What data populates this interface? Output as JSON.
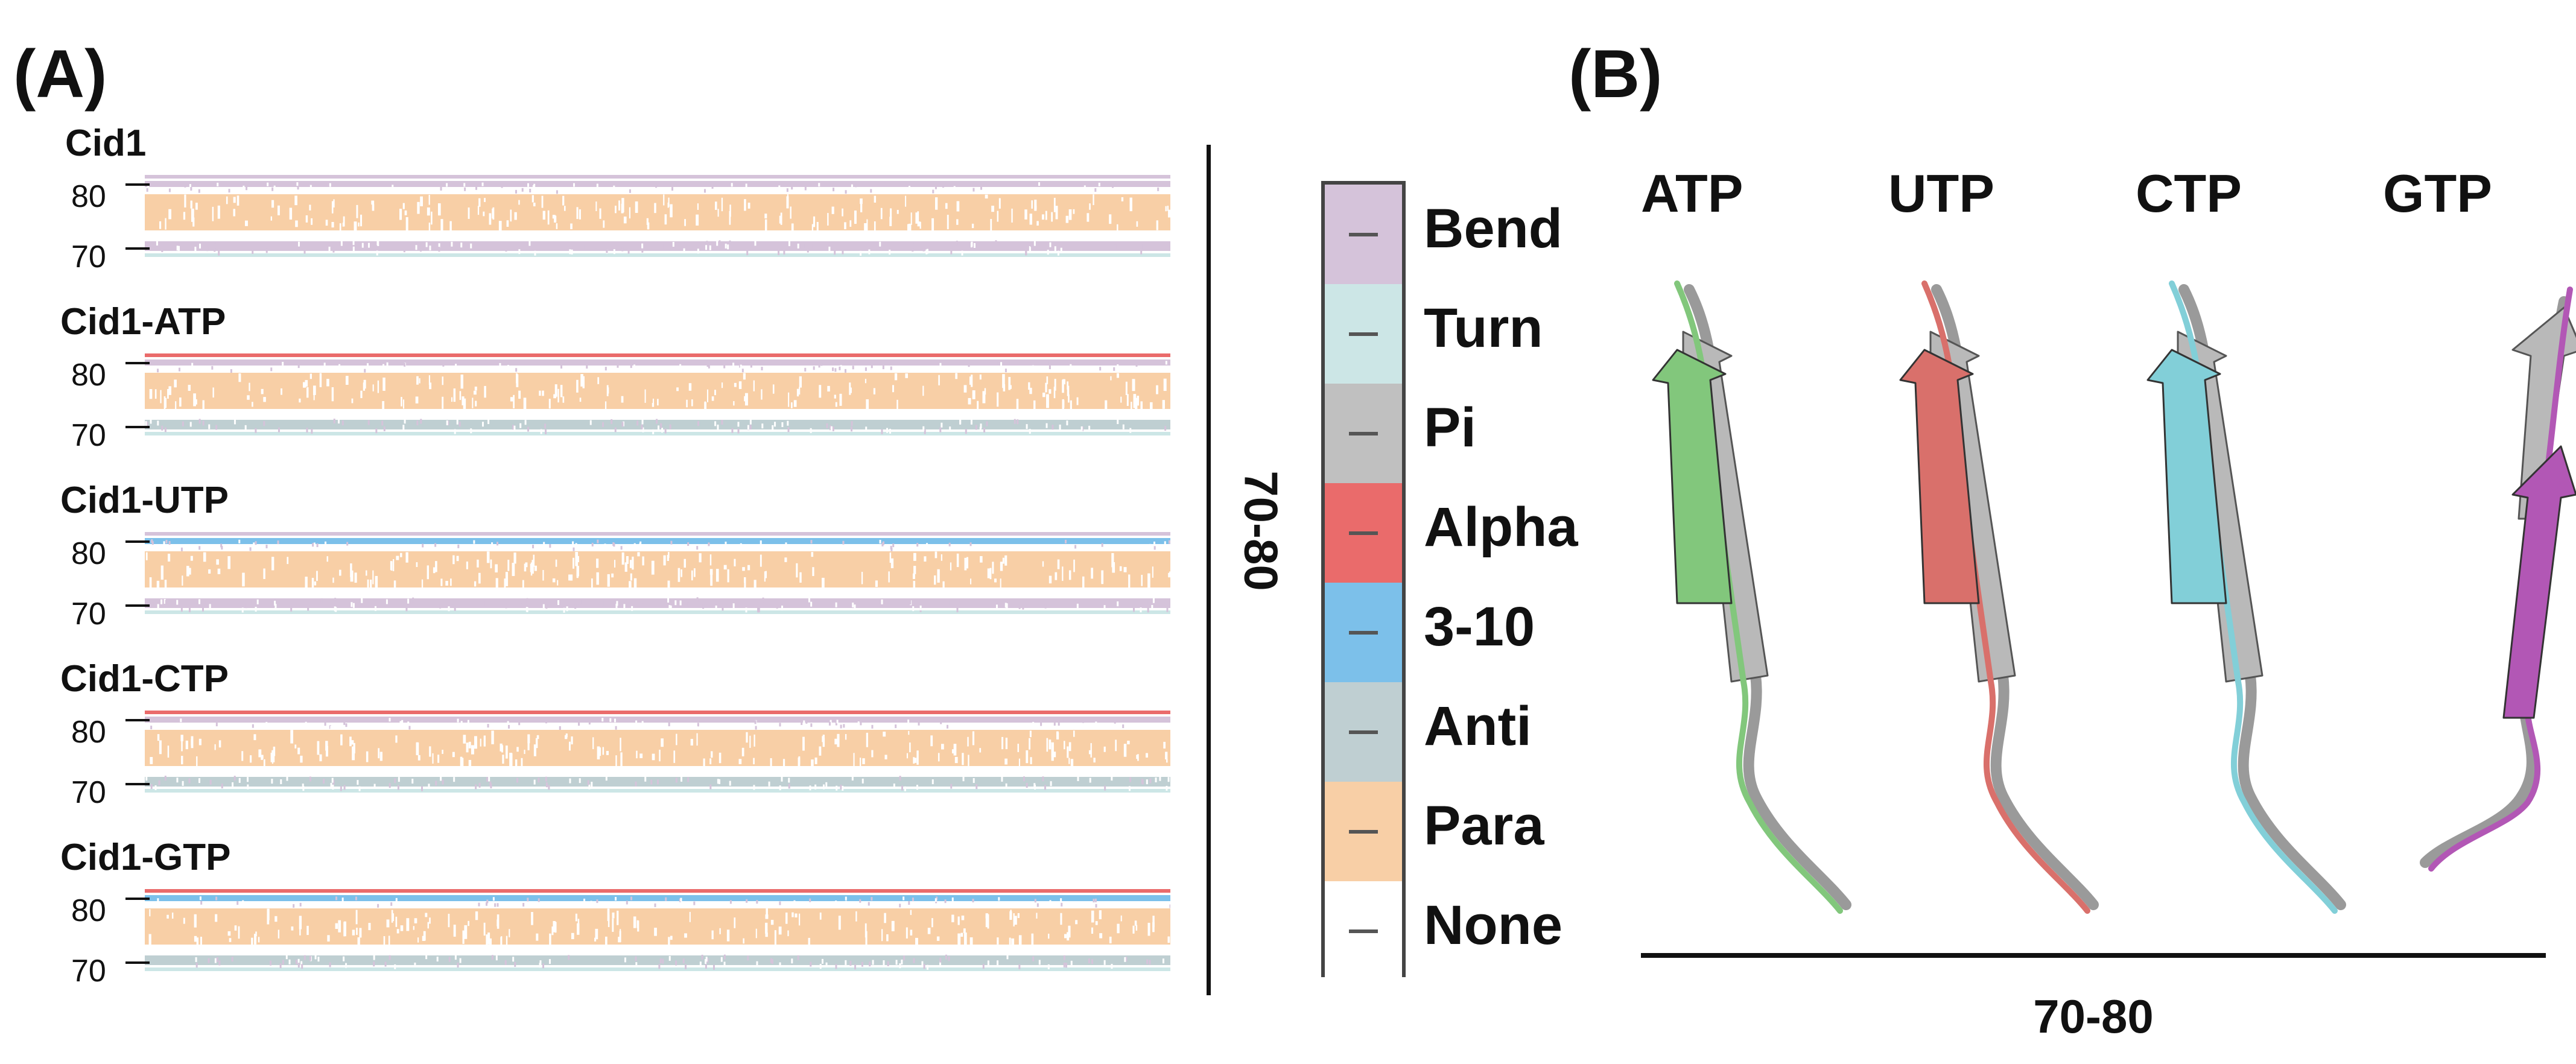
{
  "panel_a": {
    "label": "(A)",
    "range_label": "70-80",
    "tracks": [
      {
        "name": "Cid1",
        "tick_high": "80",
        "tick_low": "70",
        "top_band": "Bend",
        "upper_accent": "Bend",
        "middle_band": "Para",
        "lower_band": "Bend",
        "bottom_band": "Turn"
      },
      {
        "name": "Cid1-ATP",
        "tick_high": "80",
        "tick_low": "70",
        "top_band": "Alpha",
        "upper_accent": "Bend",
        "middle_band": "Para",
        "lower_band": "Anti",
        "bottom_band": "Turn"
      },
      {
        "name": "Cid1-UTP",
        "tick_high": "80",
        "tick_low": "70",
        "top_band": "Bend",
        "upper_accent": "3-10",
        "middle_band": "Para",
        "lower_band": "Bend",
        "bottom_band": "Turn"
      },
      {
        "name": "Cid1-CTP",
        "tick_high": "80",
        "tick_low": "70",
        "top_band": "Alpha",
        "upper_accent": "Bend",
        "middle_band": "Para",
        "lower_band": "Anti",
        "bottom_band": "Turn"
      },
      {
        "name": "Cid1-GTP",
        "tick_high": "80",
        "tick_low": "70",
        "top_band": "Alpha",
        "upper_accent": "3-10",
        "middle_band": "Para",
        "lower_band": "Anti",
        "bottom_band": "Turn"
      }
    ]
  },
  "legend": {
    "items": [
      {
        "label": "Bend",
        "color": "#d5c3da"
      },
      {
        "label": "Turn",
        "color": "#cce6e6"
      },
      {
        "label": "Pi",
        "color": "#c0c0c0"
      },
      {
        "label": "Alpha",
        "color": "#ea6b6b"
      },
      {
        "label": "3-10",
        "color": "#7cc0ea"
      },
      {
        "label": "Anti",
        "color": "#bfcfd2"
      },
      {
        "label": "Para",
        "color": "#f8cfa6"
      },
      {
        "label": "None",
        "color": "#ffffff"
      }
    ]
  },
  "panel_b": {
    "label": "(B)",
    "axis_label": "70-80",
    "structures": [
      {
        "label": "ATP",
        "color": "#82c77c"
      },
      {
        "label": "UTP",
        "color": "#d9706b"
      },
      {
        "label": "CTP",
        "color": "#82cfd8"
      },
      {
        "label": "GTP",
        "color": "#b257b5"
      }
    ]
  }
}
